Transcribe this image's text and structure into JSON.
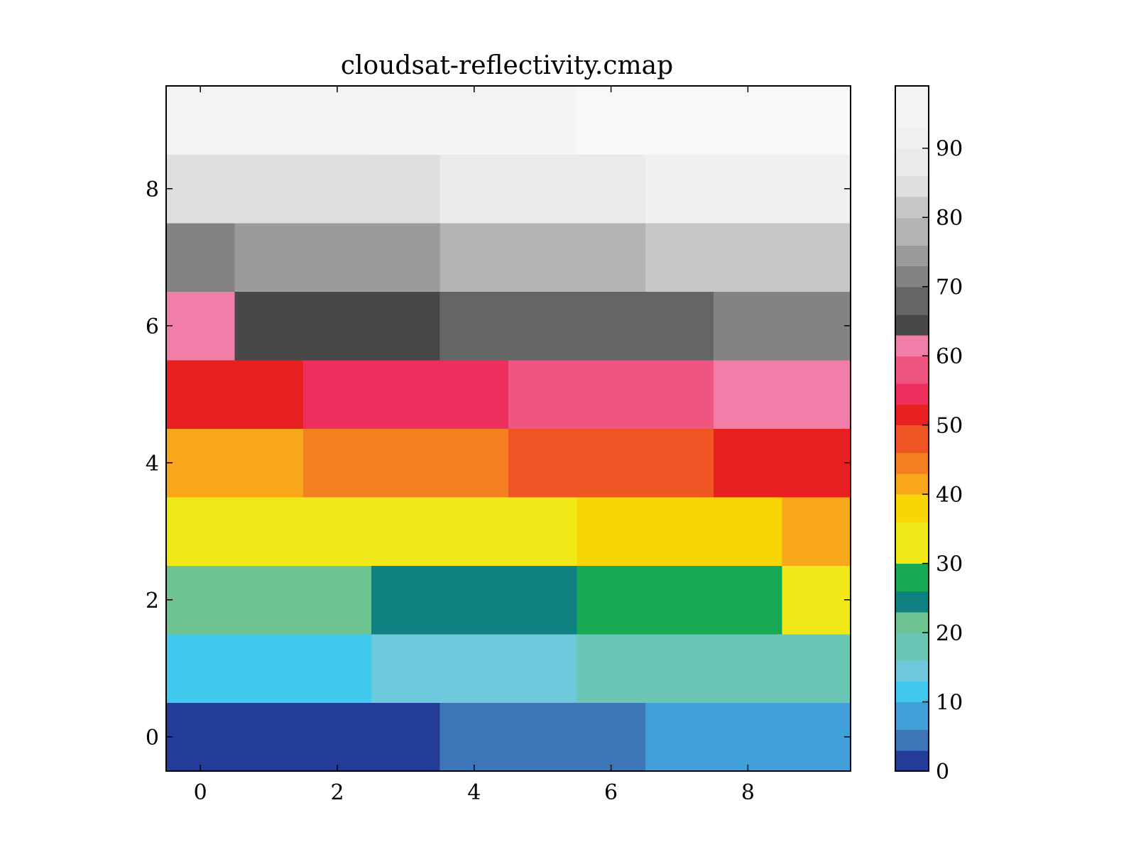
{
  "chart_data": {
    "type": "heatmap",
    "title": "cloudsat-reflectivity.cmap",
    "xlabel": "",
    "ylabel": "",
    "xlim": [
      -0.5,
      9.5
    ],
    "ylim": [
      -0.5,
      9.5
    ],
    "x_ticks": [
      "0",
      "2",
      "4",
      "6",
      "8"
    ],
    "y_ticks": [
      "0",
      "2",
      "4",
      "6",
      "8"
    ],
    "grid": false,
    "rows": [
      [
        0,
        0,
        0,
        0,
        3,
        3,
        3,
        6,
        6,
        6
      ],
      [
        10,
        10,
        10,
        13,
        13,
        13,
        16,
        16,
        16,
        16
      ],
      [
        20,
        20,
        20,
        23,
        23,
        23,
        26,
        26,
        26,
        30
      ],
      [
        33,
        33,
        33,
        33,
        33,
        33,
        36,
        36,
        36,
        40
      ],
      [
        40,
        40,
        43,
        43,
        43,
        46,
        46,
        46,
        50,
        50
      ],
      [
        50,
        50,
        53,
        53,
        53,
        56,
        56,
        56,
        60,
        60
      ],
      [
        60,
        63,
        63,
        63,
        66,
        66,
        66,
        66,
        70,
        70
      ],
      [
        70,
        73,
        73,
        73,
        76,
        76,
        76,
        80,
        80,
        80
      ],
      [
        83,
        83,
        83,
        83,
        86,
        86,
        86,
        90,
        90,
        90
      ],
      [
        93,
        93,
        93,
        96,
        96,
        96,
        99,
        99,
        99,
        99
      ]
    ],
    "colorbar": {
      "range": [
        0,
        99
      ],
      "ticks": [
        "0",
        "10",
        "20",
        "30",
        "40",
        "50",
        "60",
        "70",
        "80",
        "90"
      ],
      "levels": [
        {
          "from": 0,
          "color": "#233c97"
        },
        {
          "from": 3,
          "color": "#3c76b9"
        },
        {
          "from": 6,
          "color": "#419fd8"
        },
        {
          "from": 10,
          "color": "#40c8ef"
        },
        {
          "from": 13,
          "color": "#6ec9dc"
        },
        {
          "from": 16,
          "color": "#6cc6b5"
        },
        {
          "from": 20,
          "color": "#6ec490"
        },
        {
          "from": 23,
          "color": "#0e8180"
        },
        {
          "from": 26,
          "color": "#18a955"
        },
        {
          "from": 30,
          "color": "#f0e917"
        },
        {
          "from": 33,
          "color": "#f0e917"
        },
        {
          "from": 36,
          "color": "#f8d504"
        },
        {
          "from": 40,
          "color": "#f8a71b"
        },
        {
          "from": 43,
          "color": "#f37f20"
        },
        {
          "from": 46,
          "color": "#ee5523"
        },
        {
          "from": 50,
          "color": "#e92022"
        },
        {
          "from": 53,
          "color": "#ec2f5c"
        },
        {
          "from": 56,
          "color": "#ee5581"
        },
        {
          "from": 60,
          "color": "#f07ea9"
        },
        {
          "from": 63,
          "color": "#484848"
        },
        {
          "from": 66,
          "color": "#646665"
        },
        {
          "from": 70,
          "color": "#828382"
        },
        {
          "from": 73,
          "color": "#9b9b9b"
        },
        {
          "from": 76,
          "color": "#b4b4b4"
        },
        {
          "from": 80,
          "color": "#c6c6c6"
        },
        {
          "from": 83,
          "color": "#dedfe0"
        },
        {
          "from": 86,
          "color": "#eaeaeb"
        },
        {
          "from": 90,
          "color": "#f0f0f1"
        },
        {
          "from": 93,
          "color": "#f2f3f4"
        },
        {
          "from": 96,
          "color": "#f3f4f5"
        },
        {
          "from": 99,
          "color": "#f7f8f8"
        }
      ]
    }
  }
}
